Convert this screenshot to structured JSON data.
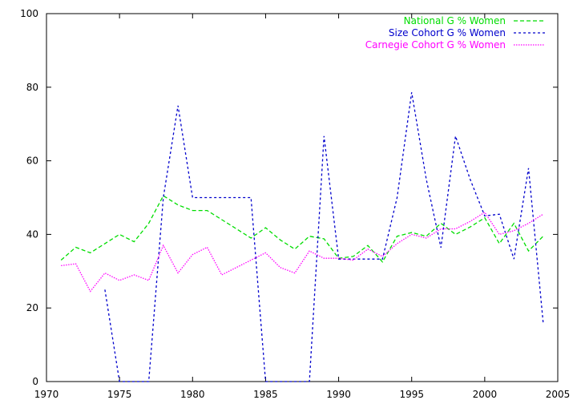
{
  "chart_data": {
    "type": "line",
    "title": "",
    "xlabel": "",
    "ylabel": "",
    "xlim": [
      1970,
      2005
    ],
    "ylim": [
      0,
      100
    ],
    "x_ticks": [
      1970,
      1975,
      1980,
      1985,
      1990,
      1995,
      2000,
      2005
    ],
    "y_ticks": [
      0,
      20,
      40,
      60,
      80,
      100
    ],
    "grid": false,
    "legend_position": "top-right",
    "series": [
      {
        "name": "National G % Women",
        "color": "#00dd00",
        "dash": "dashed",
        "x": [
          1971,
          1972,
          1973,
          1974,
          1975,
          1976,
          1977,
          1978,
          1979,
          1980,
          1981,
          1982,
          1983,
          1984,
          1985,
          1986,
          1987,
          1988,
          1989,
          1990,
          1991,
          1992,
          1993,
          1994,
          1995,
          1996,
          1997,
          1998,
          1999,
          2000,
          2001,
          2002,
          2003,
          2004
        ],
        "y": [
          33,
          36.5,
          35,
          37.5,
          40,
          38,
          43,
          50.5,
          48,
          46.5,
          46.5,
          44,
          41.5,
          39,
          41.8,
          38.5,
          36,
          39.5,
          38.8,
          33.5,
          34,
          37,
          32.5,
          39.5,
          40.5,
          39.5,
          43,
          40,
          42,
          44.5,
          37.5,
          43,
          35.5,
          39.5
        ]
      },
      {
        "name": "Size Cohort G % Women",
        "color": "#0000cc",
        "dash": "dotted-dashed",
        "x": [
          1974,
          1975,
          1976,
          1977,
          1978,
          1979,
          1980,
          1981,
          1982,
          1983,
          1984,
          1985,
          1986,
          1987,
          1988,
          1989,
          1990,
          1991,
          1992,
          1993,
          1994,
          1995,
          1996,
          1997,
          1998,
          1999,
          2000,
          2001,
          2002,
          2003,
          2004
        ],
        "y": [
          25,
          0,
          0,
          0,
          50,
          75,
          50,
          50,
          50,
          50,
          50,
          0,
          0,
          0,
          0,
          66.7,
          33.3,
          33.3,
          33.3,
          33.3,
          50,
          78.6,
          55,
          36.4,
          66.7,
          55,
          45,
          45.5,
          33.3,
          58,
          16
        ]
      },
      {
        "name": "Carnegie Cohort G % Women",
        "color": "#ff00ff",
        "dash": "dotted",
        "x": [
          1971,
          1972,
          1973,
          1974,
          1975,
          1976,
          1977,
          1978,
          1979,
          1980,
          1981,
          1982,
          1983,
          1984,
          1985,
          1986,
          1987,
          1988,
          1989,
          1990,
          1991,
          1992,
          1993,
          1994,
          1995,
          1996,
          1997,
          1998,
          1999,
          2000,
          2001,
          2002,
          2003,
          2004
        ],
        "y": [
          31.5,
          32,
          24.5,
          29.5,
          27.5,
          29,
          27.5,
          37,
          29.5,
          34.5,
          36.5,
          29,
          31,
          33,
          35,
          31,
          29.5,
          35.5,
          33.5,
          33.5,
          33,
          36,
          34,
          37.5,
          40,
          39,
          41.5,
          41.5,
          43.5,
          46,
          40,
          41,
          43,
          45.5
        ]
      }
    ]
  }
}
